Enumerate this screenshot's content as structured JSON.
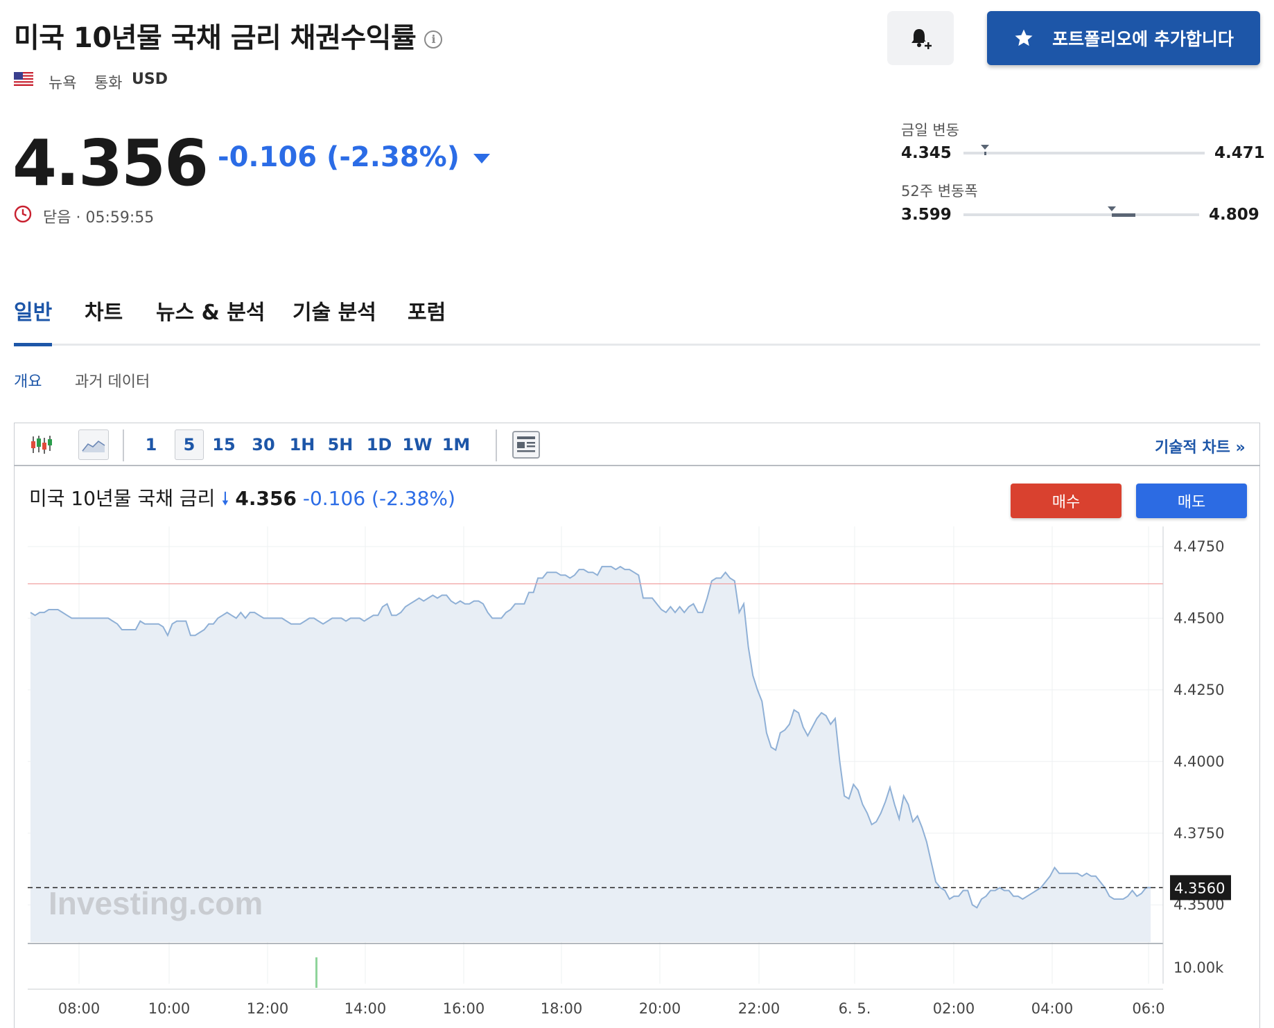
{
  "header": {
    "title": "미국 10년물 국채 금리 채권수익률",
    "info_icon": "info-icon",
    "exchange": "뉴욕",
    "currency_label": "통화",
    "currency": "USD"
  },
  "actions": {
    "alert_icon": "bell-plus-icon",
    "portfolio_label": "포트폴리오에 추가합니다"
  },
  "quote": {
    "price": "4.356",
    "change": "-0.106 (-2.38%)",
    "status": "닫음 · 05:59:55"
  },
  "ranges": {
    "day_label": "금일 변동",
    "day_low": "4.345",
    "day_high": "4.471",
    "day_marker_fraction": 0.09,
    "week52_label": "52주 변동폭",
    "week52_low": "3.599",
    "week52_high": "4.809",
    "week52_marker_fraction": 0.63
  },
  "tabs": [
    "일반",
    "차트",
    "뉴스 & 분석",
    "기술 분석",
    "포럼"
  ],
  "subtabs": [
    "개요",
    "과거 데이터"
  ],
  "toolbar": {
    "intervals": [
      "1",
      "5",
      "15",
      "30",
      "1H",
      "5H",
      "1D",
      "1W",
      "1M"
    ],
    "selected_interval": "5",
    "tech_chart_link": "기술적 차트 »"
  },
  "chart_header": {
    "name": "미국 10년물 국채 금리",
    "price": "4.356",
    "change": "-0.106",
    "change_pct": "(-2.38%)",
    "buy_label": "매수",
    "sell_label": "매도"
  },
  "colors": {
    "accent": "#1d56a8",
    "down": "#2b6ce6",
    "buy": "#d9412f",
    "sell": "#2c6be3",
    "line": "#8fb0d6",
    "area": "#e8eef5"
  },
  "chart_data": {
    "type": "area",
    "watermark": "Investing.com",
    "x_tick_labels": [
      "08:00",
      "10:00",
      "12:00",
      "14:00",
      "16:00",
      "18:00",
      "20:00",
      "22:00",
      "6. 5.",
      "02:00",
      "04:00",
      "06:0"
    ],
    "y_tick_labels": [
      "4.4750",
      "4.4500",
      "4.4250",
      "4.4000",
      "4.3750",
      "4.3500"
    ],
    "ylim": [
      4.337,
      4.482
    ],
    "prev_close": 4.462,
    "current_value_label": "4.3560",
    "current_value": 4.356,
    "volume_axis_label": "10.00k",
    "values": [
      4.452,
      4.451,
      4.452,
      4.452,
      4.453,
      4.453,
      4.453,
      4.452,
      4.451,
      4.45,
      4.45,
      4.45,
      4.45,
      4.45,
      4.45,
      4.45,
      4.45,
      4.45,
      4.449,
      4.448,
      4.446,
      4.446,
      4.446,
      4.446,
      4.449,
      4.448,
      4.448,
      4.448,
      4.448,
      4.447,
      4.444,
      4.448,
      4.449,
      4.449,
      4.449,
      4.444,
      4.444,
      4.445,
      4.446,
      4.448,
      4.448,
      4.45,
      4.451,
      4.452,
      4.451,
      4.45,
      4.452,
      4.45,
      4.452,
      4.452,
      4.451,
      4.45,
      4.45,
      4.45,
      4.45,
      4.45,
      4.449,
      4.448,
      4.448,
      4.448,
      4.449,
      4.45,
      4.45,
      4.449,
      4.448,
      4.449,
      4.45,
      4.45,
      4.45,
      4.449,
      4.45,
      4.45,
      4.45,
      4.449,
      4.45,
      4.451,
      4.451,
      4.454,
      4.455,
      4.451,
      4.451,
      4.452,
      4.454,
      4.455,
      4.456,
      4.457,
      4.456,
      4.457,
      4.458,
      4.457,
      4.458,
      4.458,
      4.456,
      4.455,
      4.456,
      4.455,
      4.455,
      4.456,
      4.456,
      4.455,
      4.452,
      4.45,
      4.45,
      4.45,
      4.452,
      4.453,
      4.455,
      4.455,
      4.455,
      4.459,
      4.459,
      4.464,
      4.464,
      4.466,
      4.466,
      4.466,
      4.465,
      4.465,
      4.464,
      4.465,
      4.467,
      4.467,
      4.466,
      4.466,
      4.465,
      4.468,
      4.468,
      4.468,
      4.467,
      4.468,
      4.467,
      4.467,
      4.466,
      4.465,
      4.457,
      4.457,
      4.457,
      4.455,
      4.453,
      4.452,
      4.454,
      4.452,
      4.454,
      4.452,
      4.454,
      4.455,
      4.452,
      4.452,
      4.457,
      4.463,
      4.464,
      4.464,
      4.466,
      4.464,
      4.463,
      4.452,
      4.455,
      4.44,
      4.43,
      4.425,
      4.421,
      4.41,
      4.405,
      4.404,
      4.41,
      4.411,
      4.413,
      4.418,
      4.417,
      4.412,
      4.409,
      4.412,
      4.415,
      4.417,
      4.416,
      4.413,
      4.415,
      4.4,
      4.388,
      4.387,
      4.392,
      4.39,
      4.385,
      4.382,
      4.378,
      4.379,
      4.382,
      4.386,
      4.391,
      4.385,
      4.38,
      4.388,
      4.385,
      4.379,
      4.381,
      4.377,
      4.372,
      4.365,
      4.358,
      4.356,
      4.355,
      4.352,
      4.353,
      4.353,
      4.355,
      4.355,
      4.35,
      4.349,
      4.352,
      4.353,
      4.355,
      4.355,
      4.356,
      4.355,
      4.355,
      4.353,
      4.353,
      4.352,
      4.353,
      4.354,
      4.355,
      4.356,
      4.358,
      4.36,
      4.363,
      4.361,
      4.361,
      4.361,
      4.361,
      4.361,
      4.36,
      4.361,
      4.36,
      4.36,
      4.358,
      4.356,
      4.353,
      4.352,
      4.352,
      4.352,
      4.353,
      4.355,
      4.353,
      4.354,
      4.356,
      4.356
    ]
  }
}
